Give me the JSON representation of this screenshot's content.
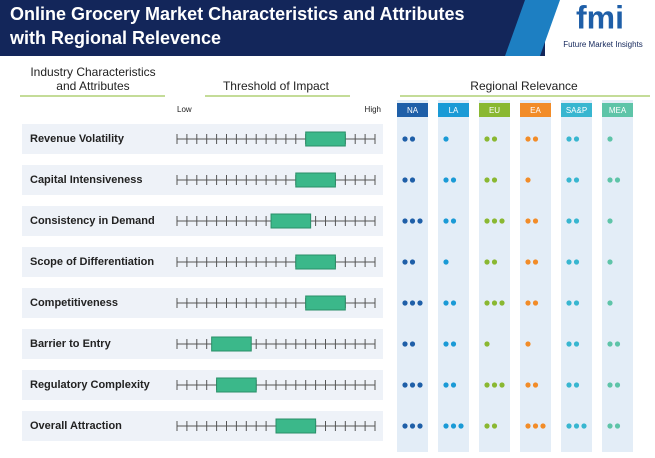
{
  "header": {
    "title_line1": "Online Grocery Market Characteristics and Attributes",
    "title_line2": "with Regional Relevence",
    "logo": "fmi",
    "logo_sub": "Future Market Insights"
  },
  "labels": {
    "characteristics_line1": "Industry Characteristics",
    "characteristics_line2": "and Attributes",
    "threshold": "Threshold of Impact",
    "regional": "Regional Relevance",
    "low": "Low",
    "high": "High"
  },
  "scale": {
    "min": 0,
    "max": 20,
    "ticks": [
      0,
      1,
      2,
      3,
      4,
      5,
      6,
      7,
      8,
      9,
      10,
      11,
      12,
      13,
      14,
      15,
      16,
      17,
      18,
      19,
      20
    ]
  },
  "regions": [
    {
      "name": "NA",
      "color": "#1f5fa8"
    },
    {
      "name": "LA",
      "color": "#1a9ad6"
    },
    {
      "name": "EU",
      "color": "#8ab832"
    },
    {
      "name": "EA",
      "color": "#f28c28"
    },
    {
      "name": "SA&P",
      "color": "#38b6d0"
    },
    {
      "name": "MEA",
      "color": "#5ec4a8"
    }
  ],
  "rows": [
    {
      "label": "Revenue Volatility",
      "start": 13,
      "end": 17,
      "dots": [
        2,
        1,
        2,
        2,
        2,
        1
      ]
    },
    {
      "label": "Capital Intensiveness",
      "start": 12,
      "end": 16,
      "dots": [
        2,
        2,
        2,
        1,
        2,
        2
      ]
    },
    {
      "label": "Consistency in Demand",
      "start": 9.5,
      "end": 13.5,
      "dots": [
        3,
        2,
        3,
        2,
        2,
        1
      ]
    },
    {
      "label": "Scope of Differentiation",
      "start": 12,
      "end": 16,
      "dots": [
        2,
        1,
        2,
        2,
        2,
        1
      ]
    },
    {
      "label": "Competitiveness",
      "start": 13,
      "end": 17,
      "dots": [
        3,
        2,
        3,
        2,
        2,
        1
      ]
    },
    {
      "label": "Barrier to Entry",
      "start": 3.5,
      "end": 7.5,
      "dots": [
        2,
        2,
        1,
        1,
        2,
        2
      ]
    },
    {
      "label": "Regulatory Complexity",
      "start": 4,
      "end": 8,
      "dots": [
        3,
        2,
        3,
        2,
        2,
        2
      ]
    },
    {
      "label": "Overall Attraction",
      "start": 10,
      "end": 14,
      "dots": [
        3,
        3,
        2,
        3,
        3,
        2
      ]
    }
  ]
}
